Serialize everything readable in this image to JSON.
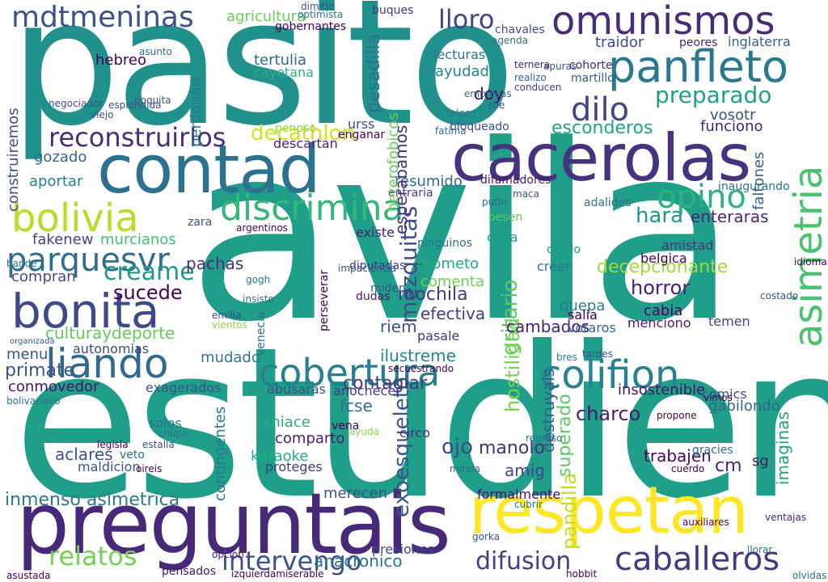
{
  "words": [
    {
      "text": "avila",
      "color": "#1f9e89"
    },
    {
      "text": "estudien",
      "color": "#1f9e89"
    },
    {
      "text": "pasito",
      "color": "#21918c"
    },
    {
      "text": "preguntais",
      "color": "#482878"
    },
    {
      "text": "respetan",
      "color": "#fde725"
    },
    {
      "text": "cacerolas",
      "color": "#46327e"
    },
    {
      "text": "contad",
      "color": "#2c728e"
    },
    {
      "text": "bonita",
      "color": "#3e4989"
    },
    {
      "text": "omunismos",
      "color": "#472c7a"
    },
    {
      "text": "panfleto",
      "color": "#2a788e"
    },
    {
      "text": "discrimina",
      "color": "#35b779"
    },
    {
      "text": "bolivia",
      "color": "#b5de2b"
    },
    {
      "text": "cobertura",
      "color": "#27808e"
    },
    {
      "text": "colifion",
      "color": "#26828e"
    },
    {
      "text": "liando",
      "color": "#31688e"
    },
    {
      "text": "caballeros",
      "color": "#443983"
    },
    {
      "text": "mdtmeninas",
      "color": "#3b528b"
    },
    {
      "text": "parquesvr",
      "color": "#2f6c8e"
    },
    {
      "text": "reconstruirlos",
      "color": "#472d7b"
    },
    {
      "text": "asimetria",
      "color": "#4ac16d"
    },
    {
      "text": "opino",
      "color": "#2db27d"
    },
    {
      "text": "dilo",
      "color": "#404688"
    },
    {
      "text": "lloro",
      "color": "#3f4788"
    },
    {
      "text": "preparado",
      "color": "#1fa187"
    },
    {
      "text": "intervengo",
      "color": "#3b528b"
    },
    {
      "text": "difusion",
      "color": "#433e85"
    },
    {
      "text": "relatos",
      "color": "#75d054"
    },
    {
      "text": "creame",
      "color": "#1f9a8a"
    },
    {
      "text": "decathlon",
      "color": "#d2e21b"
    },
    {
      "text": "culturaydeporte",
      "color": "#65cb5e"
    },
    {
      "text": "sucede",
      "color": "#440154"
    },
    {
      "text": "exoesqueleto",
      "color": "#3a548c"
    },
    {
      "text": "inmenso asimetrica",
      "color": "#2a788e"
    },
    {
      "text": "mezquitas",
      "color": "#3e4c8a"
    },
    {
      "text": "gritario",
      "color": "#5ec962"
    },
    {
      "text": "hostilidad",
      "color": "#7ad151"
    },
    {
      "text": "pandilla",
      "color": "#c2df23"
    },
    {
      "text": "manolo",
      "color": "#46307e"
    },
    {
      "text": "charco",
      "color": "#481b6d"
    },
    {
      "text": "decepcionante",
      "color": "#a0da39"
    },
    {
      "text": "horror",
      "color": "#482173"
    },
    {
      "text": "mochila",
      "color": "#443a83"
    },
    {
      "text": "efectiva",
      "color": "#433d84"
    },
    {
      "text": "cambados",
      "color": "#482374"
    },
    {
      "text": "contagiar",
      "color": "#453781"
    },
    {
      "text": "ilustreme",
      "color": "#25858e"
    },
    {
      "text": "fcse",
      "color": "#2e6f8e"
    },
    {
      "text": "destruyais",
      "color": "#38588c"
    },
    {
      "text": "superado",
      "color": "#5ec962"
    },
    {
      "text": "ojo",
      "color": "#3e4a89"
    },
    {
      "text": "amig",
      "color": "#414487"
    },
    {
      "text": "esconderos",
      "color": "#21a685"
    },
    {
      "text": "resumido",
      "color": "#31688e"
    },
    {
      "text": "difamadores",
      "color": "#48186a"
    },
    {
      "text": "insostenible",
      "color": "#471365"
    },
    {
      "text": "trabajen",
      "color": "#46085c"
    },
    {
      "text": "cm",
      "color": "#482475"
    },
    {
      "text": "hara",
      "color": "#1f988b"
    },
    {
      "text": "enteraras",
      "color": "#482878"
    },
    {
      "text": "conmovedor",
      "color": "#481668"
    },
    {
      "text": "autonomias",
      "color": "#3e4a89"
    },
    {
      "text": "menu",
      "color": "#3a538b"
    },
    {
      "text": "primate",
      "color": "#39568c"
    },
    {
      "text": "fakenew",
      "color": "#404588"
    },
    {
      "text": "murcianos",
      "color": "#44bf70"
    },
    {
      "text": "pachas",
      "color": "#472f7d"
    },
    {
      "text": "compran",
      "color": "#3d4d8a"
    },
    {
      "text": "mudado",
      "color": "#2a788e"
    },
    {
      "text": "tertulia",
      "color": "#31688e"
    },
    {
      "text": "gozado",
      "color": "#31688e"
    },
    {
      "text": "aportar",
      "color": "#25838e"
    },
    {
      "text": "hebreo",
      "color": "#440154"
    },
    {
      "text": "cayetana",
      "color": "#2ab07f"
    },
    {
      "text": "ayudad",
      "color": "#25858e"
    },
    {
      "text": "funciono",
      "color": "#482374"
    },
    {
      "text": "vosotr",
      "color": "#3b528b"
    },
    {
      "text": "traidor",
      "color": "#3e4a89"
    },
    {
      "text": "inglaterra",
      "color": "#355f8d"
    },
    {
      "text": "peores",
      "color": "#482576"
    },
    {
      "text": "agricultura",
      "color": "#6ccd5a"
    },
    {
      "text": "lecturas",
      "color": "#2c728e"
    },
    {
      "text": "buques",
      "color": "#46327e"
    },
    {
      "text": "prometo",
      "color": "#22a884"
    },
    {
      "text": "comenta",
      "color": "#6ece58"
    },
    {
      "text": "creer",
      "color": "#2a788e"
    },
    {
      "text": "belgica",
      "color": "#440154"
    },
    {
      "text": "amistad",
      "color": "#453781"
    },
    {
      "text": "cabia",
      "color": "#46075a"
    },
    {
      "text": "quepa",
      "color": "#29798e"
    },
    {
      "text": "menciono",
      "color": "#481b6d"
    },
    {
      "text": "temen",
      "color": "#3f4788"
    },
    {
      "text": "aclares",
      "color": "#3b528b"
    },
    {
      "text": "karaoke",
      "color": "#27ad81"
    },
    {
      "text": "proteges",
      "color": "#453882"
    },
    {
      "text": "merecen",
      "color": "#3d4e8a"
    },
    {
      "text": "formalmente",
      "color": "#471063"
    },
    {
      "text": "anacronico",
      "color": "#2b758e"
    },
    {
      "text": "presiones",
      "color": "#414487"
    },
    {
      "text": "pensados",
      "color": "#481769"
    },
    {
      "text": "sniace",
      "color": "#29af7f"
    },
    {
      "text": "comparto",
      "color": "#482071"
    },
    {
      "text": "maldicion",
      "color": "#39568c"
    },
    {
      "text": "anochecer",
      "color": "#453781"
    },
    {
      "text": "abusaras",
      "color": "#3b528b"
    },
    {
      "text": "exagerados",
      "color": "#3b528b"
    },
    {
      "text": "contingentes",
      "color": "#2a778e"
    },
    {
      "text": "descartan",
      "color": "#482576"
    },
    {
      "text": "bloqueado",
      "color": "#3c508b"
    },
    {
      "text": "existe",
      "color": "#481f70"
    },
    {
      "text": "entraria",
      "color": "#443983"
    },
    {
      "text": "miden",
      "color": "#3a538b"
    },
    {
      "text": "besen",
      "color": "#5ec962"
    },
    {
      "text": "cona",
      "color": "#1f9a8a"
    },
    {
      "text": "opcion",
      "color": "#481f70"
    },
    {
      "text": "veto",
      "color": "#2d708e"
    },
    {
      "text": "circo",
      "color": "#46337f"
    },
    {
      "text": "bres",
      "color": "#27808e"
    },
    {
      "text": "comics",
      "color": "#3b528b"
    },
    {
      "text": "sg",
      "color": "#471365"
    },
    {
      "text": "imaginas",
      "color": "#1f9e89"
    },
    {
      "text": "solos",
      "color": "#2c728e"
    },
    {
      "text": "doy",
      "color": "#440154"
    },
    {
      "text": "penoso",
      "color": "#8fd744"
    },
    {
      "text": "esperabamos",
      "color": "#472e7c"
    },
    {
      "text": "pesadilla",
      "color": "#2d708e"
    },
    {
      "text": "urss",
      "color": "#3b528b"
    },
    {
      "text": "heterofobicos",
      "color": "#65cb5e"
    },
    {
      "text": "construiremos",
      "color": "#3c4f8a"
    },
    {
      "text": "perdonan",
      "color": "#2a788e"
    },
    {
      "text": "gobernantes",
      "color": "#440154"
    },
    {
      "text": "chavales",
      "color": "#3b528b"
    },
    {
      "text": "faltones",
      "color": "#35608d"
    },
    {
      "text": "regreso",
      "color": "#2c718e"
    },
    {
      "text": "riem",
      "color": "#3b528b"
    },
    {
      "text": "pasale",
      "color": "#453781"
    },
    {
      "text": "diputadas",
      "color": "#443a83"
    },
    {
      "text": "dudas",
      "color": "#481769"
    },
    {
      "text": "votaros",
      "color": "#31688e"
    },
    {
      "text": "salia",
      "color": "#440154"
    },
    {
      "text": "emilia",
      "color": "#3e4a89"
    },
    {
      "text": "ayuda",
      "color": "#8fd744"
    },
    {
      "text": "mirala",
      "color": "#31688e"
    },
    {
      "text": "dimitio",
      "color": "#3b528b"
    },
    {
      "text": "pinguinos",
      "color": "#2c728e"
    },
    {
      "text": "adalides",
      "color": "#2c728e"
    },
    {
      "text": "inaugurando",
      "color": "#2c728e"
    },
    {
      "text": "cohorte",
      "color": "#482878"
    },
    {
      "text": "realizo",
      "color": "#31688e"
    },
    {
      "text": "conducen",
      "color": "#443983"
    },
    {
      "text": "apuras",
      "color": "#3b528b"
    },
    {
      "text": "martillo",
      "color": "#355f8d"
    },
    {
      "text": "ternera",
      "color": "#482878"
    },
    {
      "text": "agenda",
      "color": "#31688e"
    },
    {
      "text": "izquierdamiserable",
      "color": "#440154"
    },
    {
      "text": "olvido",
      "color": "#1f9e89"
    },
    {
      "text": "zara",
      "color": "#3b528b"
    },
    {
      "text": "enganar",
      "color": "#440154"
    },
    {
      "text": "impaciencia",
      "color": "#3b528b"
    },
    {
      "text": "idioma",
      "color": "#440154"
    },
    {
      "text": "vimos",
      "color": "#440154"
    },
    {
      "text": "gracies",
      "color": "#2c728e"
    },
    {
      "text": "cuerdo",
      "color": "#440154"
    },
    {
      "text": "ventajas",
      "color": "#482878"
    },
    {
      "text": "tardes",
      "color": "#3b528b"
    },
    {
      "text": "costado",
      "color": "#3b528b"
    },
    {
      "text": "gabilondo",
      "color": "#31688e"
    },
    {
      "text": "viejo",
      "color": "#3b528b"
    },
    {
      "text": "asunto",
      "color": "#31688e"
    },
    {
      "text": "fatima",
      "color": "#2c728e"
    },
    {
      "text": "putin",
      "color": "#31688e"
    },
    {
      "text": "maca",
      "color": "#3b528b"
    },
    {
      "text": "sile",
      "color": "#3b528b"
    },
    {
      "text": "poquita",
      "color": "#3b528b"
    },
    {
      "text": "negociador",
      "color": "#3b528b"
    },
    {
      "text": "esplendida",
      "color": "#3b528b"
    },
    {
      "text": "vena",
      "color": "#440154"
    },
    {
      "text": "propone",
      "color": "#440154"
    },
    {
      "text": "empresas",
      "color": "#2c728e"
    },
    {
      "text": "teleco",
      "color": "#2c728e"
    },
    {
      "text": "gorka",
      "color": "#3b528b"
    },
    {
      "text": "cubrir",
      "color": "#2c728e"
    },
    {
      "text": "llorar",
      "color": "#2c728e"
    },
    {
      "text": "auxiliares",
      "color": "#440154"
    },
    {
      "text": "olvidas",
      "color": "#2c728e"
    },
    {
      "text": "hobbit",
      "color": "#440154"
    },
    {
      "text": "asustada",
      "color": "#440154"
    },
    {
      "text": "legisla",
      "color": "#440154"
    },
    {
      "text": "oireis",
      "color": "#440154"
    },
    {
      "text": "chiqui",
      "color": "#2c728e"
    },
    {
      "text": "estalla",
      "color": "#3b528b"
    },
    {
      "text": "organizada",
      "color": "#3b528b"
    },
    {
      "text": "bolivariano",
      "color": "#2c728e"
    },
    {
      "text": "insisto",
      "color": "#2c728e"
    },
    {
      "text": "gogh",
      "color": "#2c728e"
    },
    {
      "text": "bande",
      "color": "#2c728e"
    },
    {
      "text": "venecia",
      "color": "#2c728e"
    },
    {
      "text": "perseverar",
      "color": "#440154"
    },
    {
      "text": "argentinos",
      "color": "#440154"
    },
    {
      "text": "secuestrando",
      "color": "#440154"
    },
    {
      "text": "vientos",
      "color": "#8fd744"
    },
    {
      "text": "optimista",
      "color": "#2c728e"
    },
    {
      "text": "dimito",
      "color": "#440154"
    }
  ]
}
